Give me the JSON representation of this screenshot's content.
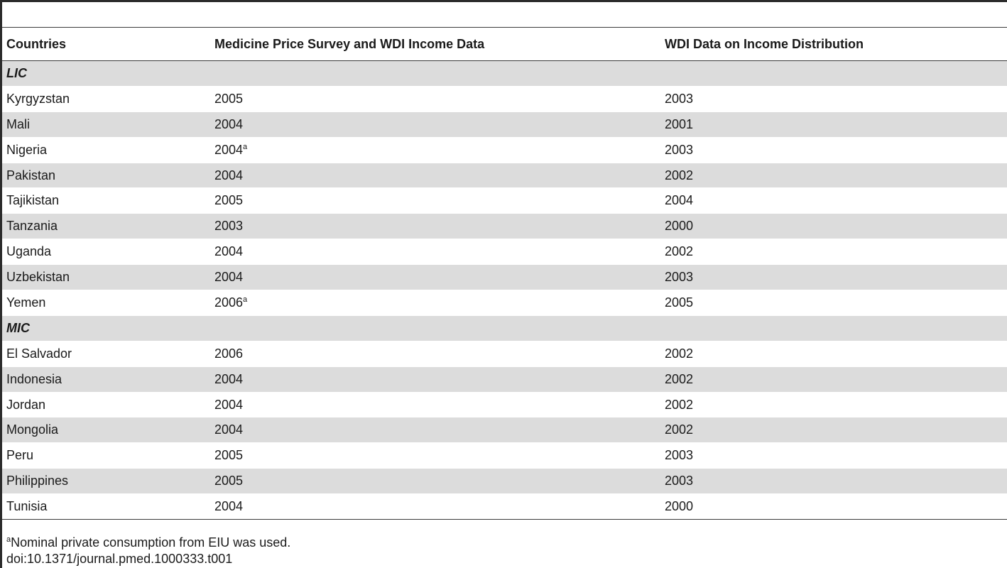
{
  "table": {
    "headers": [
      "Countries",
      "Medicine Price Survey and WDI Income Data",
      "WDI Data on Income Distribution"
    ],
    "rows": [
      {
        "type": "group",
        "label": "LIC"
      },
      {
        "country": "Kyrgyzstan",
        "survey_year": "2005",
        "survey_note": "",
        "wdi_year": "2003"
      },
      {
        "country": "Mali",
        "survey_year": "2004",
        "survey_note": "",
        "wdi_year": "2001"
      },
      {
        "country": "Nigeria",
        "survey_year": "2004",
        "survey_note": "a",
        "wdi_year": "2003"
      },
      {
        "country": "Pakistan",
        "survey_year": "2004",
        "survey_note": "",
        "wdi_year": "2002"
      },
      {
        "country": "Tajikistan",
        "survey_year": "2005",
        "survey_note": "",
        "wdi_year": "2004"
      },
      {
        "country": "Tanzania",
        "survey_year": "2003",
        "survey_note": "",
        "wdi_year": "2000"
      },
      {
        "country": "Uganda",
        "survey_year": "2004",
        "survey_note": "",
        "wdi_year": "2002"
      },
      {
        "country": "Uzbekistan",
        "survey_year": "2004",
        "survey_note": "",
        "wdi_year": "2003"
      },
      {
        "country": "Yemen",
        "survey_year": "2006",
        "survey_note": "a",
        "wdi_year": "2005"
      },
      {
        "type": "group",
        "label": "MIC"
      },
      {
        "country": "El Salvador",
        "survey_year": "2006",
        "survey_note": "",
        "wdi_year": "2002"
      },
      {
        "country": "Indonesia",
        "survey_year": "2004",
        "survey_note": "",
        "wdi_year": "2002"
      },
      {
        "country": "Jordan",
        "survey_year": "2004",
        "survey_note": "",
        "wdi_year": "2002"
      },
      {
        "country": "Mongolia",
        "survey_year": "2004",
        "survey_note": "",
        "wdi_year": "2002"
      },
      {
        "country": "Peru",
        "survey_year": "2005",
        "survey_note": "",
        "wdi_year": "2003"
      },
      {
        "country": "Philippines",
        "survey_year": "2005",
        "survey_note": "",
        "wdi_year": "2003"
      },
      {
        "country": "Tunisia",
        "survey_year": "2004",
        "survey_note": "",
        "wdi_year": "2000"
      }
    ]
  },
  "footnote": {
    "marker": "a",
    "text": "Nominal private consumption from EIU was used."
  },
  "doi": "doi:10.1371/journal.pmed.1000333.t001",
  "colors": {
    "stripe": "#dcdcdc",
    "rule": "#3a3a3a",
    "text": "#1a1a1a"
  }
}
